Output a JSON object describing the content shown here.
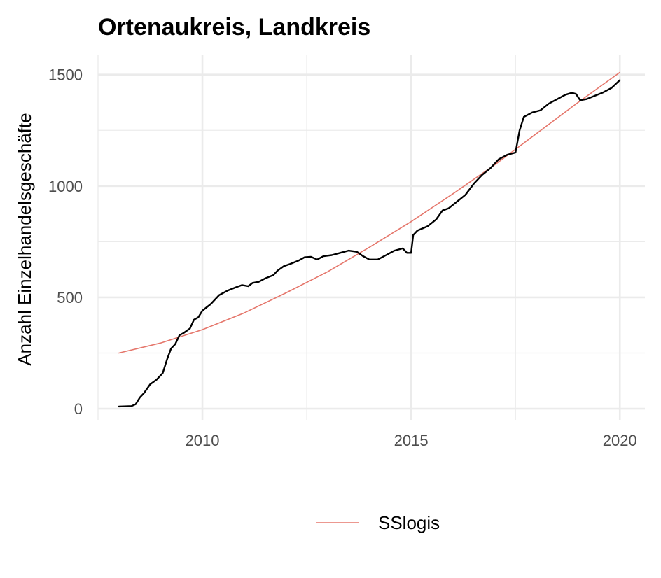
{
  "chart_data": {
    "type": "line",
    "title": "Ortenaukreis, Landkreis",
    "xlabel": "",
    "ylabel": "Anzahl Einzelhandelsgeschäfte",
    "xlim": [
      2007.5,
      2020.6
    ],
    "ylim": [
      -50,
      1590
    ],
    "x_ticks": [
      2010,
      2015,
      2020
    ],
    "x_tick_labels": [
      "2010",
      "2015",
      "2020"
    ],
    "y_ticks": [
      0,
      500,
      1000,
      1500
    ],
    "y_tick_labels": [
      "0",
      "500",
      "1000",
      "1500"
    ],
    "grid": true,
    "legend_position": "bottom",
    "series": [
      {
        "color": "#000000",
        "x": [
          2008.0,
          2008.3,
          2008.4,
          2008.5,
          2008.6,
          2008.75,
          2008.9,
          2009.05,
          2009.15,
          2009.25,
          2009.35,
          2009.45,
          2009.55,
          2009.7,
          2009.8,
          2009.9,
          2010.0,
          2010.2,
          2010.4,
          2010.6,
          2010.8,
          2010.95,
          2011.1,
          2011.2,
          2011.35,
          2011.5,
          2011.7,
          2011.8,
          2011.95,
          2012.1,
          2012.3,
          2012.45,
          2012.6,
          2012.75,
          2012.9,
          2013.1,
          2013.3,
          2013.5,
          2013.7,
          2013.85,
          2014.0,
          2014.2,
          2014.4,
          2014.6,
          2014.8,
          2014.9,
          2015.0,
          2015.05,
          2015.15,
          2015.4,
          2015.6,
          2015.75,
          2015.9,
          2016.1,
          2016.3,
          2016.5,
          2016.7,
          2016.9,
          2017.1,
          2017.3,
          2017.5,
          2017.6,
          2017.7,
          2017.9,
          2018.1,
          2018.3,
          2018.5,
          2018.7,
          2018.85,
          2018.95,
          2019.05,
          2019.2,
          2019.4,
          2019.6,
          2019.8,
          2020.0
        ],
        "values": [
          10,
          12,
          20,
          50,
          70,
          110,
          130,
          160,
          220,
          270,
          290,
          330,
          340,
          360,
          400,
          410,
          440,
          470,
          510,
          530,
          545,
          555,
          550,
          565,
          570,
          585,
          600,
          620,
          640,
          650,
          665,
          680,
          682,
          670,
          685,
          690,
          700,
          710,
          705,
          685,
          670,
          670,
          690,
          710,
          720,
          700,
          700,
          780,
          800,
          820,
          850,
          890,
          900,
          930,
          960,
          1010,
          1050,
          1080,
          1120,
          1140,
          1150,
          1250,
          1310,
          1330,
          1340,
          1370,
          1390,
          1410,
          1418,
          1413,
          1385,
          1390,
          1405,
          1420,
          1440,
          1475
        ]
      },
      {
        "name": "SSlogis",
        "color": "#e5766b",
        "x": [
          2008.0,
          2009.0,
          2010.0,
          2011.0,
          2012.0,
          2013.0,
          2014.0,
          2015.0,
          2016.0,
          2017.0,
          2018.0,
          2019.0,
          2020.0
        ],
        "values": [
          250,
          295,
          355,
          430,
          520,
          615,
          725,
          840,
          965,
          1095,
          1235,
          1375,
          1510
        ]
      }
    ]
  }
}
